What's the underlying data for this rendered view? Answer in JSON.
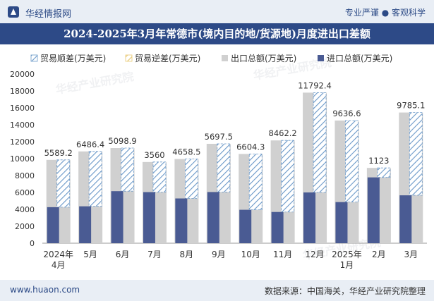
{
  "header": {
    "brand": "华经情报网",
    "slogan": "专业严谨 ● 客观科学"
  },
  "title": "2024-2025年3月年常德市(境内目的地/货源地)月度进出口差额",
  "footer": {
    "website": "www.huaon.com",
    "source": "数据来源：中国海关，华经产业研究院整理"
  },
  "watermark": {
    "text": "华经产业研究院",
    "url": "www.huaon.com"
  },
  "chart_data": {
    "type": "bar",
    "title": "2024-2025年3月年常德市(境内目的地/货源地)月度进出口差额",
    "legend": [
      "贸易顺差(万美元)",
      "贸易逆差(万美元)",
      "出口总额(万美元)",
      "进口总额(万美元)"
    ],
    "categories": [
      "2024年\n4月",
      "5月",
      "6月",
      "7月",
      "8月",
      "9月",
      "10月",
      "11月",
      "12月",
      "2025年\n1月",
      "2月",
      "3月"
    ],
    "series": [
      {
        "name": "出口总额(万美元)",
        "values": [
          9850,
          10850,
          11250,
          9600,
          9950,
          11750,
          10550,
          12150,
          17800,
          14500,
          8900,
          15450
        ]
      },
      {
        "name": "进口总额(万美元)",
        "values": [
          4260,
          4360,
          6150,
          6040,
          5290,
          6050,
          3950,
          3690,
          6000,
          4860,
          7780,
          5660
        ]
      },
      {
        "name": "贸易顺差(万美元)",
        "values": [
          5589.2,
          6486.4,
          5098.9,
          3560,
          4658.5,
          5697.5,
          6604.3,
          8462.2,
          11792.4,
          9636.6,
          1123,
          9785.1
        ]
      },
      {
        "name": "贸易逆差(万美元)",
        "values": [
          0,
          0,
          0,
          0,
          0,
          0,
          0,
          0,
          0,
          0,
          0,
          0
        ]
      }
    ],
    "labels": [
      "5589.2",
      "6486.4",
      "5098.9",
      "3560",
      "4658.5",
      "5697.5",
      "6604.3",
      "8462.2",
      "11792.4",
      "9636.6",
      "1123",
      "9785.1"
    ],
    "yticks": [
      "0",
      "2000",
      "4000",
      "6000",
      "8000",
      "10000",
      "12000",
      "14000",
      "16000",
      "18000",
      "20000"
    ],
    "ylim": [
      0,
      20000
    ],
    "colors": {
      "export": "#d0d0d0",
      "import": "#4a5b93",
      "surplus": "#6a98c8",
      "deficit": "#e8c870"
    }
  }
}
